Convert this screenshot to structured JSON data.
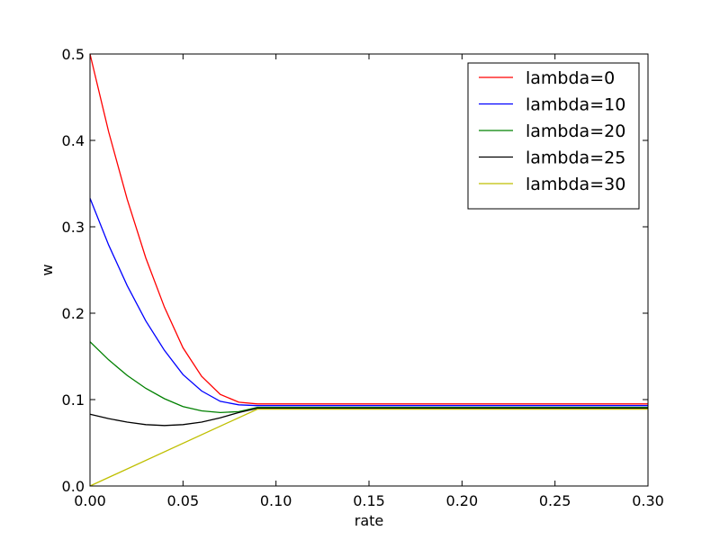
{
  "chart_data": {
    "type": "line",
    "xlabel": "rate",
    "ylabel": "w",
    "xlim": [
      0,
      0.3
    ],
    "ylim": [
      0,
      0.5
    ],
    "xticks": [
      "0.00",
      "0.05",
      "0.10",
      "0.15",
      "0.20",
      "0.25",
      "0.30"
    ],
    "yticks": [
      "0.0",
      "0.1",
      "0.2",
      "0.3",
      "0.4",
      "0.5"
    ],
    "grid": false,
    "legend_position": "top-right",
    "series": [
      {
        "name": "lambda=0",
        "color": "#ff0000",
        "x": [
          0,
          0.01,
          0.02,
          0.03,
          0.04,
          0.05,
          0.06,
          0.07,
          0.08,
          0.09,
          0.1,
          0.15,
          0.2,
          0.25,
          0.3
        ],
        "y": [
          0.5,
          0.41,
          0.332,
          0.264,
          0.207,
          0.16,
          0.127,
          0.106,
          0.097,
          0.095,
          0.095,
          0.095,
          0.095,
          0.095,
          0.095
        ]
      },
      {
        "name": "lambda=10",
        "color": "#0000ff",
        "x": [
          0,
          0.01,
          0.02,
          0.03,
          0.04,
          0.05,
          0.06,
          0.07,
          0.08,
          0.09,
          0.1,
          0.15,
          0.2,
          0.25,
          0.3
        ],
        "y": [
          0.333,
          0.279,
          0.232,
          0.191,
          0.157,
          0.129,
          0.11,
          0.098,
          0.094,
          0.093,
          0.093,
          0.093,
          0.093,
          0.093,
          0.093
        ]
      },
      {
        "name": "lambda=20",
        "color": "#008000",
        "x": [
          0,
          0.01,
          0.02,
          0.03,
          0.04,
          0.05,
          0.06,
          0.07,
          0.08,
          0.09,
          0.1,
          0.15,
          0.2,
          0.25,
          0.3
        ],
        "y": [
          0.167,
          0.146,
          0.128,
          0.113,
          0.101,
          0.092,
          0.087,
          0.085,
          0.086,
          0.091,
          0.091,
          0.091,
          0.091,
          0.091,
          0.091
        ]
      },
      {
        "name": "lambda=25",
        "color": "#000000",
        "x": [
          0,
          0.01,
          0.02,
          0.03,
          0.04,
          0.05,
          0.06,
          0.07,
          0.08,
          0.09,
          0.1,
          0.15,
          0.2,
          0.25,
          0.3
        ],
        "y": [
          0.083,
          0.078,
          0.074,
          0.071,
          0.07,
          0.071,
          0.074,
          0.079,
          0.085,
          0.09,
          0.09,
          0.09,
          0.09,
          0.09,
          0.09
        ]
      },
      {
        "name": "lambda=30",
        "color": "#bfbf00",
        "x": [
          0,
          0.09,
          0.1,
          0.15,
          0.2,
          0.25,
          0.3
        ],
        "y": [
          0.0,
          0.089,
          0.089,
          0.089,
          0.089,
          0.089,
          0.089
        ]
      }
    ]
  }
}
